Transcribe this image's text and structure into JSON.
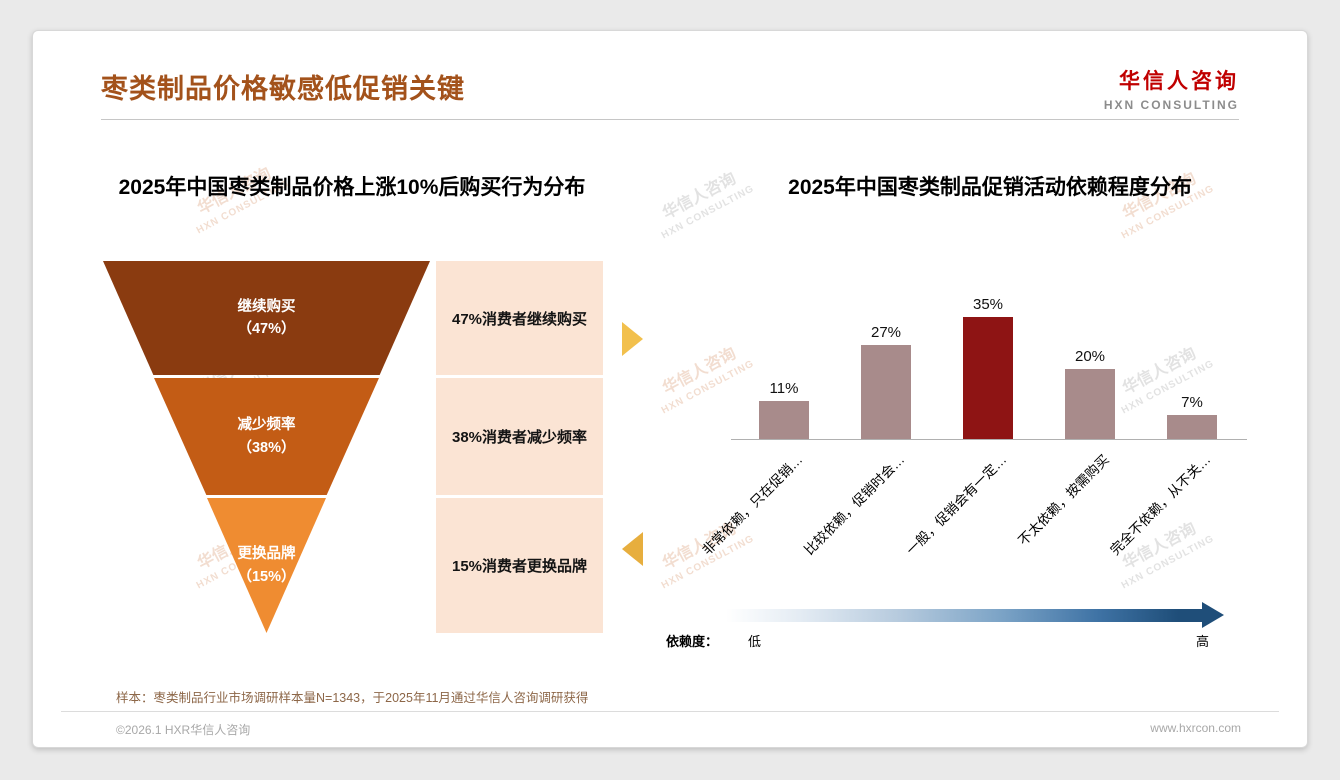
{
  "header": {
    "title": "枣类制品价格敏感低促销关键",
    "logo_name": "华信人咨询",
    "logo_sub": "HXN CONSULTING"
  },
  "watermark": {
    "line1": "华信人咨询",
    "line2": "HXN CONSULTING"
  },
  "funnel_chart": {
    "title": "2025年中国枣类制品价格上涨10%后购买行为分布",
    "desc_bg": "#fbe4d4",
    "segments": [
      {
        "label": "继续购买",
        "value": "（47%）",
        "desc": "47%消费者继续购买",
        "color": "#8a3b10"
      },
      {
        "label": "减少频率",
        "value": "（38%）",
        "desc": "38%消费者减少频率",
        "color": "#c35c15"
      },
      {
        "label": "更换品牌",
        "value": "（15%）",
        "desc": "15%消费者更换品牌",
        "color": "#ef8c31"
      }
    ]
  },
  "chart_data": {
    "type": "bar",
    "title": "2025年中国枣类制品促销活动依赖程度分布",
    "categories": [
      "非常依赖，只在促销…",
      "比较依赖，促销时会…",
      "一般，促销会有一定…",
      "不太依赖，按需购买",
      "完全不依赖，从不关…"
    ],
    "values": [
      11,
      27,
      35,
      20,
      7
    ],
    "value_suffix": "%",
    "highlight_index": 2,
    "bar_color": "#a88b8b",
    "highlight_color": "#8e1414",
    "ylim": [
      0,
      40
    ],
    "gridlines": false,
    "legend": "none",
    "dependency_axis": {
      "label": "依赖度：",
      "low": "低",
      "high": "高"
    }
  },
  "footnote": "样本：枣类制品行业市场调研样本量N=1343，于2025年11月通过华信人咨询调研获得",
  "footer": {
    "left": "©2026.1 HXR华信人咨询",
    "right": "www.hxrcon.com"
  }
}
